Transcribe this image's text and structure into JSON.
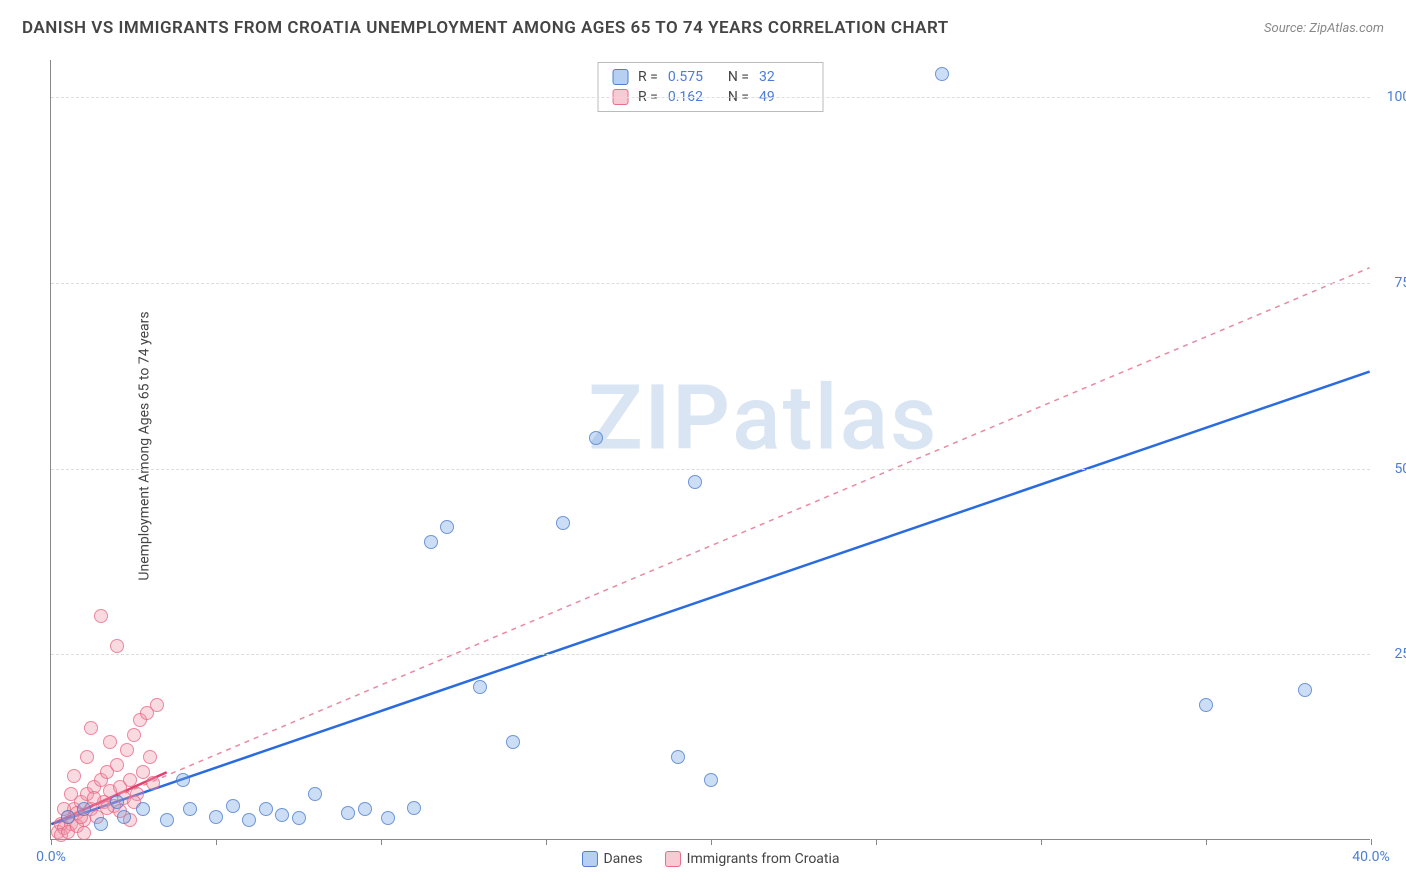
{
  "title": "DANISH VS IMMIGRANTS FROM CROATIA UNEMPLOYMENT AMONG AGES 65 TO 74 YEARS CORRELATION CHART",
  "source_label": "Source: ZipAtlas.com",
  "y_axis_label": "Unemployment Among Ages 65 to 74 years",
  "watermark": "ZIPatlas",
  "chart": {
    "type": "scatter",
    "background_color": "#ffffff",
    "grid_color": "#dddddd",
    "text_color": "#444444",
    "value_color": "#4a7dd8",
    "xlim": [
      0,
      40
    ],
    "ylim": [
      0,
      105
    ],
    "x_ticks": [
      0,
      5,
      10,
      15,
      20,
      25,
      30,
      35,
      40
    ],
    "x_tick_labels": {
      "0": "0.0%",
      "40": "40.0%"
    },
    "y_ticks": [
      25,
      50,
      75,
      100
    ],
    "y_tick_labels": {
      "25": "25.0%",
      "50": "50.0%",
      "75": "75.0%",
      "100": "100.0%"
    },
    "marker_size": 14,
    "correlation_box": [
      {
        "swatch": "blue",
        "r_label": "R =",
        "r_value": "0.575",
        "n_label": "N =",
        "n_value": "32"
      },
      {
        "swatch": "pink",
        "r_label": "R =",
        "r_value": "0.162",
        "n_label": "N =",
        "n_value": "49"
      }
    ],
    "series_legend": [
      {
        "swatch": "blue",
        "label": "Danes"
      },
      {
        "swatch": "pink",
        "label": "Immigrants from Croatia"
      }
    ],
    "series": {
      "danes": {
        "color_fill": "rgba(110,160,230,0.35)",
        "color_border": "rgba(70,120,200,0.7)",
        "points": [
          [
            0.5,
            3
          ],
          [
            1.0,
            4
          ],
          [
            1.5,
            2
          ],
          [
            2.0,
            5
          ],
          [
            2.2,
            3
          ],
          [
            2.8,
            4
          ],
          [
            3.5,
            2.5
          ],
          [
            4.0,
            8
          ],
          [
            4.2,
            4
          ],
          [
            5.0,
            3
          ],
          [
            5.5,
            4.5
          ],
          [
            6.0,
            2.5
          ],
          [
            6.5,
            4
          ],
          [
            7.0,
            3.2
          ],
          [
            7.5,
            2.8
          ],
          [
            8.0,
            6
          ],
          [
            9.0,
            3.5
          ],
          [
            9.5,
            4
          ],
          [
            10.2,
            2.8
          ],
          [
            11.0,
            4.2
          ],
          [
            11.5,
            40
          ],
          [
            12.0,
            42
          ],
          [
            13.0,
            20.5
          ],
          [
            14.0,
            13
          ],
          [
            15.5,
            42.5
          ],
          [
            16.5,
            54
          ],
          [
            19.0,
            11
          ],
          [
            19.5,
            48
          ],
          [
            20.0,
            8
          ],
          [
            27.0,
            103
          ],
          [
            35.0,
            18
          ],
          [
            38.0,
            20
          ]
        ],
        "regression": {
          "style": "solid",
          "color": "#2b6be0",
          "width": 2.5,
          "x1": 0,
          "y1": 2,
          "x2": 40,
          "y2": 63
        }
      },
      "croatia": {
        "color_fill": "rgba(240,150,170,0.35)",
        "color_border": "rgba(230,100,130,0.7)",
        "points": [
          [
            0.2,
            1
          ],
          [
            0.3,
            2
          ],
          [
            0.4,
            1.5
          ],
          [
            0.5,
            3
          ],
          [
            0.6,
            2
          ],
          [
            0.7,
            4
          ],
          [
            0.8,
            3.5
          ],
          [
            0.9,
            5
          ],
          [
            1.0,
            2.5
          ],
          [
            1.1,
            6
          ],
          [
            1.2,
            4
          ],
          [
            1.3,
            7
          ],
          [
            1.4,
            3
          ],
          [
            1.5,
            8
          ],
          [
            1.6,
            5
          ],
          [
            1.7,
            9
          ],
          [
            1.8,
            6.5
          ],
          [
            1.9,
            4.5
          ],
          [
            2.0,
            10
          ],
          [
            2.1,
            7
          ],
          [
            2.2,
            5.5
          ],
          [
            2.3,
            12
          ],
          [
            2.4,
            8
          ],
          [
            2.5,
            14
          ],
          [
            2.6,
            6
          ],
          [
            2.7,
            16
          ],
          [
            2.8,
            9
          ],
          [
            2.9,
            17
          ],
          [
            3.0,
            11
          ],
          [
            3.1,
            7.5
          ],
          [
            3.2,
            18
          ],
          [
            0.3,
            0.5
          ],
          [
            0.5,
            1
          ],
          [
            0.8,
            1.8
          ],
          [
            1.0,
            0.8
          ],
          [
            1.5,
            30
          ],
          [
            2.0,
            26
          ],
          [
            1.2,
            15
          ],
          [
            1.8,
            13
          ],
          [
            2.5,
            5
          ],
          [
            0.4,
            4
          ],
          [
            0.6,
            6
          ],
          [
            0.9,
            3
          ],
          [
            1.3,
            5.5
          ],
          [
            1.7,
            4.2
          ],
          [
            2.1,
            3.8
          ],
          [
            2.4,
            2.5
          ],
          [
            0.7,
            8.5
          ],
          [
            1.1,
            11
          ]
        ],
        "regression": {
          "style": "dashed",
          "color": "#e88aa0",
          "width": 1.5,
          "x1": 0,
          "y1": 2,
          "x2": 40,
          "y2": 77
        },
        "regression_solid_segment": {
          "color": "#e04070",
          "width": 2.5,
          "x1": 0,
          "y1": 2,
          "x2": 3.5,
          "y2": 9
        }
      }
    }
  }
}
